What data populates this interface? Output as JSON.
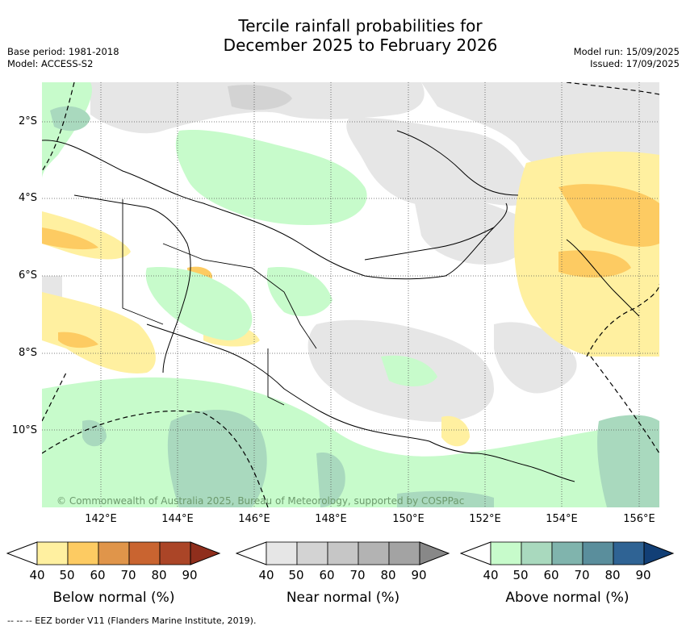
{
  "title_line1": "Tercile rainfall probabilities for",
  "title_line2": "December 2025 to February 2026",
  "meta_left": {
    "base_period": "Base period: 1981-2018",
    "model": "Model: ACCESS-S2"
  },
  "meta_right": {
    "model_run": "Model run: 15/09/2025",
    "issued": "Issued: 17/09/2025"
  },
  "lat_labels": [
    "2°S",
    "4°S",
    "6°S",
    "8°S",
    "10°S"
  ],
  "lon_labels": [
    "142°E",
    "144°E",
    "146°E",
    "148°E",
    "150°E",
    "152°E",
    "154°E",
    "156°E"
  ],
  "copyright": "© Commonwealth of Australia 2025, Bureau of Meteorology, supported by COSPPac",
  "legends": [
    {
      "title": "Below normal (%)",
      "ticks": [
        "40",
        "50",
        "60",
        "70",
        "80",
        "90"
      ],
      "colors": [
        "#fff0a0",
        "#fdcb62",
        "#e0954a",
        "#c96430",
        "#ab4527",
        "#8f2e1c"
      ],
      "low_color": "#ffffff"
    },
    {
      "title": "Near normal (%)",
      "ticks": [
        "40",
        "50",
        "60",
        "70",
        "80",
        "90"
      ],
      "colors": [
        "#e6e6e6",
        "#d3d3d3",
        "#c6c6c6",
        "#b3b3b3",
        "#a3a3a3",
        "#888888"
      ],
      "low_color": "#ffffff"
    },
    {
      "title": "Above normal (%)",
      "ticks": [
        "40",
        "50",
        "60",
        "70",
        "80",
        "90"
      ],
      "colors": [
        "#c7fbcb",
        "#a9d9be",
        "#80b4ad",
        "#5a8e9c",
        "#2f6394",
        "#123f76"
      ],
      "low_color": "#ffffff"
    }
  ],
  "eez_note": "-- -- -- EEZ border V11 (Flanders Marine Institute, 2019)."
}
